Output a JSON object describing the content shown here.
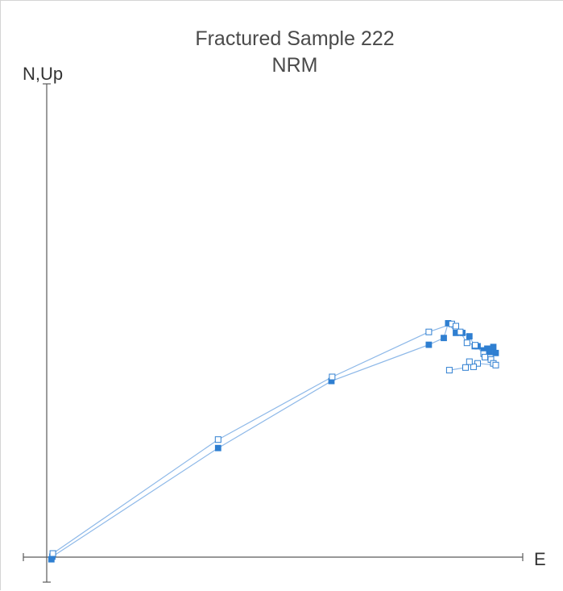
{
  "chart_data": {
    "type": "scatter",
    "title": "Fractured Sample 222",
    "subtitle": "NRM",
    "xlabel": "E",
    "ylabel": "N,Up",
    "colors": {
      "series": "#2f7fd1",
      "line": "#8db8e8",
      "axis": "#5a5a5a",
      "text": "#4a4a4a"
    },
    "series": [
      {
        "marker": "filled-square",
        "points": [
          [
            0.6,
            -0.9
          ],
          [
            1.0,
            0.2
          ],
          [
            69.6,
            45.1
          ],
          [
            116.5,
            72.8
          ],
          [
            156.8,
            87.8
          ],
          [
            163.0,
            90.6
          ],
          [
            164.8,
            96.7
          ],
          [
            168.0,
            92.7
          ],
          [
            170.7,
            92.7
          ],
          [
            173.6,
            91.3
          ],
          [
            175.8,
            87.2
          ],
          [
            177.0,
            87.2
          ],
          [
            179.5,
            85.5
          ],
          [
            181.0,
            86.2
          ],
          [
            182.0,
            84.8
          ],
          [
            183.5,
            86.9
          ],
          [
            184.5,
            84.4
          ]
        ]
      },
      {
        "marker": "open-square",
        "points": [
          [
            1.2,
            1.5
          ],
          [
            69.6,
            48.6
          ],
          [
            116.8,
            74.5
          ],
          [
            156.8,
            93.1
          ],
          [
            166.3,
            96.4
          ],
          [
            168.0,
            95.5
          ],
          [
            169.8,
            93.1
          ],
          [
            172.6,
            88.6
          ],
          [
            176.0,
            87.6
          ],
          [
            179.5,
            84.1
          ],
          [
            180.0,
            82.7
          ],
          [
            182.5,
            81.7
          ],
          [
            183.5,
            80.1
          ],
          [
            184.5,
            79.4
          ],
          [
            177.0,
            80.1
          ],
          [
            175.3,
            78.7
          ],
          [
            173.6,
            80.8
          ],
          [
            172.0,
            78.4
          ],
          [
            165.3,
            77.3
          ]
        ]
      }
    ],
    "legend": "none",
    "grid": false
  }
}
